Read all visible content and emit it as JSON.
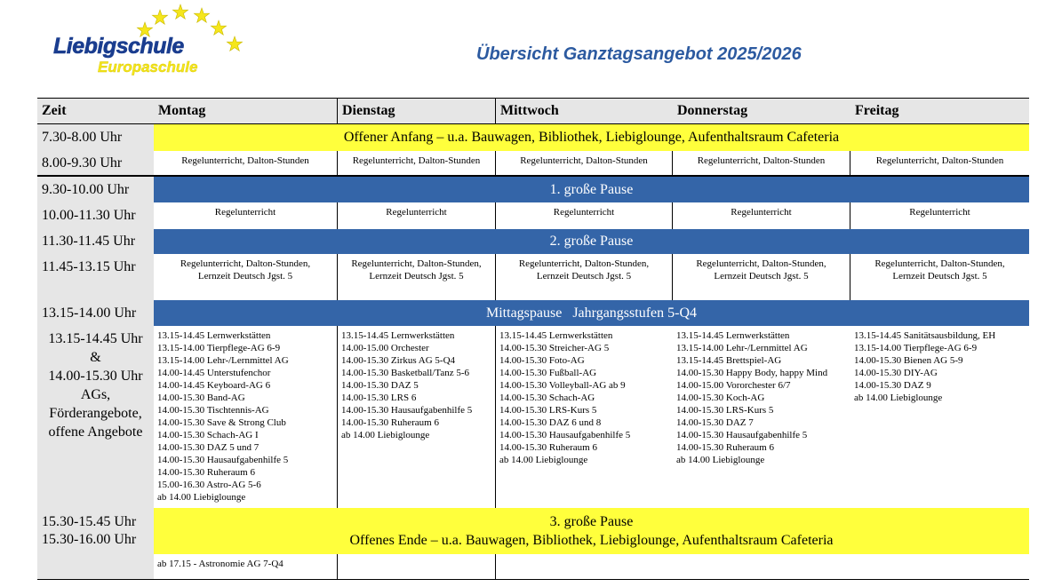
{
  "logo": {
    "name": "Liebigschule",
    "subtitle": "Europaschule"
  },
  "title": "Übersicht Ganztagsangebot 2025/2026",
  "headers": [
    "Zeit",
    "Montag",
    "Dienstag",
    "Mittwoch",
    "Donnerstag",
    "Freitag"
  ],
  "times": [
    "7.30-8.00 Uhr",
    "8.00-9.30 Uhr",
    "9.30-10.00 Uhr",
    "10.00-11.30 Uhr",
    "11.30-11.45 Uhr",
    "11.45-13.15 Uhr",
    "13.15-14.00 Uhr",
    "13.15-14.45 Uhr",
    "&",
    "14.00-15.30 Uhr",
    "AGs,",
    "Förderangebote,",
    "offene Angebote",
    "15.30-15.45 Uhr",
    "15.30-16.00 Uhr"
  ],
  "bands": {
    "open_start": "Offener Anfang – u.a. Bauwagen, Bibliothek, Liebiglounge, Aufenthaltsraum Cafeteria",
    "break1": "1. große Pause",
    "break2": "2. große Pause",
    "lunch": "Mittagspause   Jahrgangsstufen 5-Q4",
    "break3": "3. große Pause",
    "open_end": "Offenes Ende – u.a. Bauwagen, Bibliothek, Liebiglounge, Aufenthaltsraum Cafeteria"
  },
  "lessons": {
    "r800": "Regelunterricht, Dalton-Stunden",
    "r1000": "Regelunterricht",
    "r1145a": "Regelunterricht, Dalton-Stunden,",
    "r1145b": "Lernzeit Deutsch Jgst. 5"
  },
  "ags": {
    "montag": [
      "13.15-14.45 Lernwerkstätten",
      "13.15-14.00 Tierpflege-AG 6-9",
      "13.15-14.00 Lehr-/Lernmittel AG",
      "14.00-14.45 Unterstufenchor",
      "14.00-14.45 Keyboard-AG 6",
      "14.00-15.30 Band-AG",
      "14.00-15.30 Tischtennis-AG",
      "14.00-15.30 Save & Strong Club",
      "14.00-15.30 Schach-AG I",
      "14.00-15.30 DAZ  5 und 7",
      "14.00-15.30 Hausaufgabenhilfe 5",
      "14.00-15.30 Ruheraum 6",
      "15.00-16.30 Astro-AG 5-6",
      "ab 14.00 Liebiglounge"
    ],
    "dienstag": [
      "13.15-14.45 Lernwerkstätten",
      "14.00-15.00 Orchester",
      "14.00-15.30 Zirkus AG 5-Q4",
      "14.00-15.30 Basketball/Tanz 5-6",
      "14.00-15.30 DAZ 5",
      "14.00-15.30 LRS 6",
      "14.00-15.30 Hausaufgabenhilfe 5",
      "14.00-15.30 Ruheraum 6",
      "ab 14.00 Liebiglounge"
    ],
    "mittwoch": [
      "13.15-14.45 Lernwerkstätten",
      "14.00-15.30 Streicher-AG 5",
      "14.00-15.30 Foto-AG",
      "14.00-15.30 Fußball-AG",
      "14.00-15.30 Volleyball-AG ab 9",
      "14.00-15.30 Schach-AG",
      "14.00-15.30 LRS-Kurs 5",
      "14.00-15.30 DAZ 6 und 8",
      "14.00-15.30 Hausaufgabenhilfe 5",
      "14.00-15.30 Ruheraum 6",
      "ab 14.00 Liebiglounge"
    ],
    "donnerstag": [
      "13.15-14.45 Lernwerkstätten",
      "13.15-14.00 Lehr-/Lernmittel AG",
      "13.15-14.45 Brettspiel-AG",
      "14.00-15.30 Happy Body, happy Mind",
      "14.00-15.00 Vororchester 6/7",
      "14.00-15.30 Koch-AG",
      "14.00-15.30 LRS-Kurs 5",
      "14.00-15.30 DAZ 7",
      "14.00-15.30 Hausaufgabenhilfe 5",
      "14.00-15.30 Ruheraum 6",
      "ab 14.00 Liebiglounge"
    ],
    "freitag": [
      "13.15-14.45 Sanitätsausbildung, EH",
      "13.15-14.00 Tierpflege-AG 6-9",
      "14.00-15.30 Bienen AG 5-9",
      "14.00-15.30 DIY-AG",
      "14.00-15.30 DAZ 9",
      "ab 14.00 Liebiglounge"
    ]
  },
  "late": "ab 17.15 -  Astronomie AG 7-Q4"
}
